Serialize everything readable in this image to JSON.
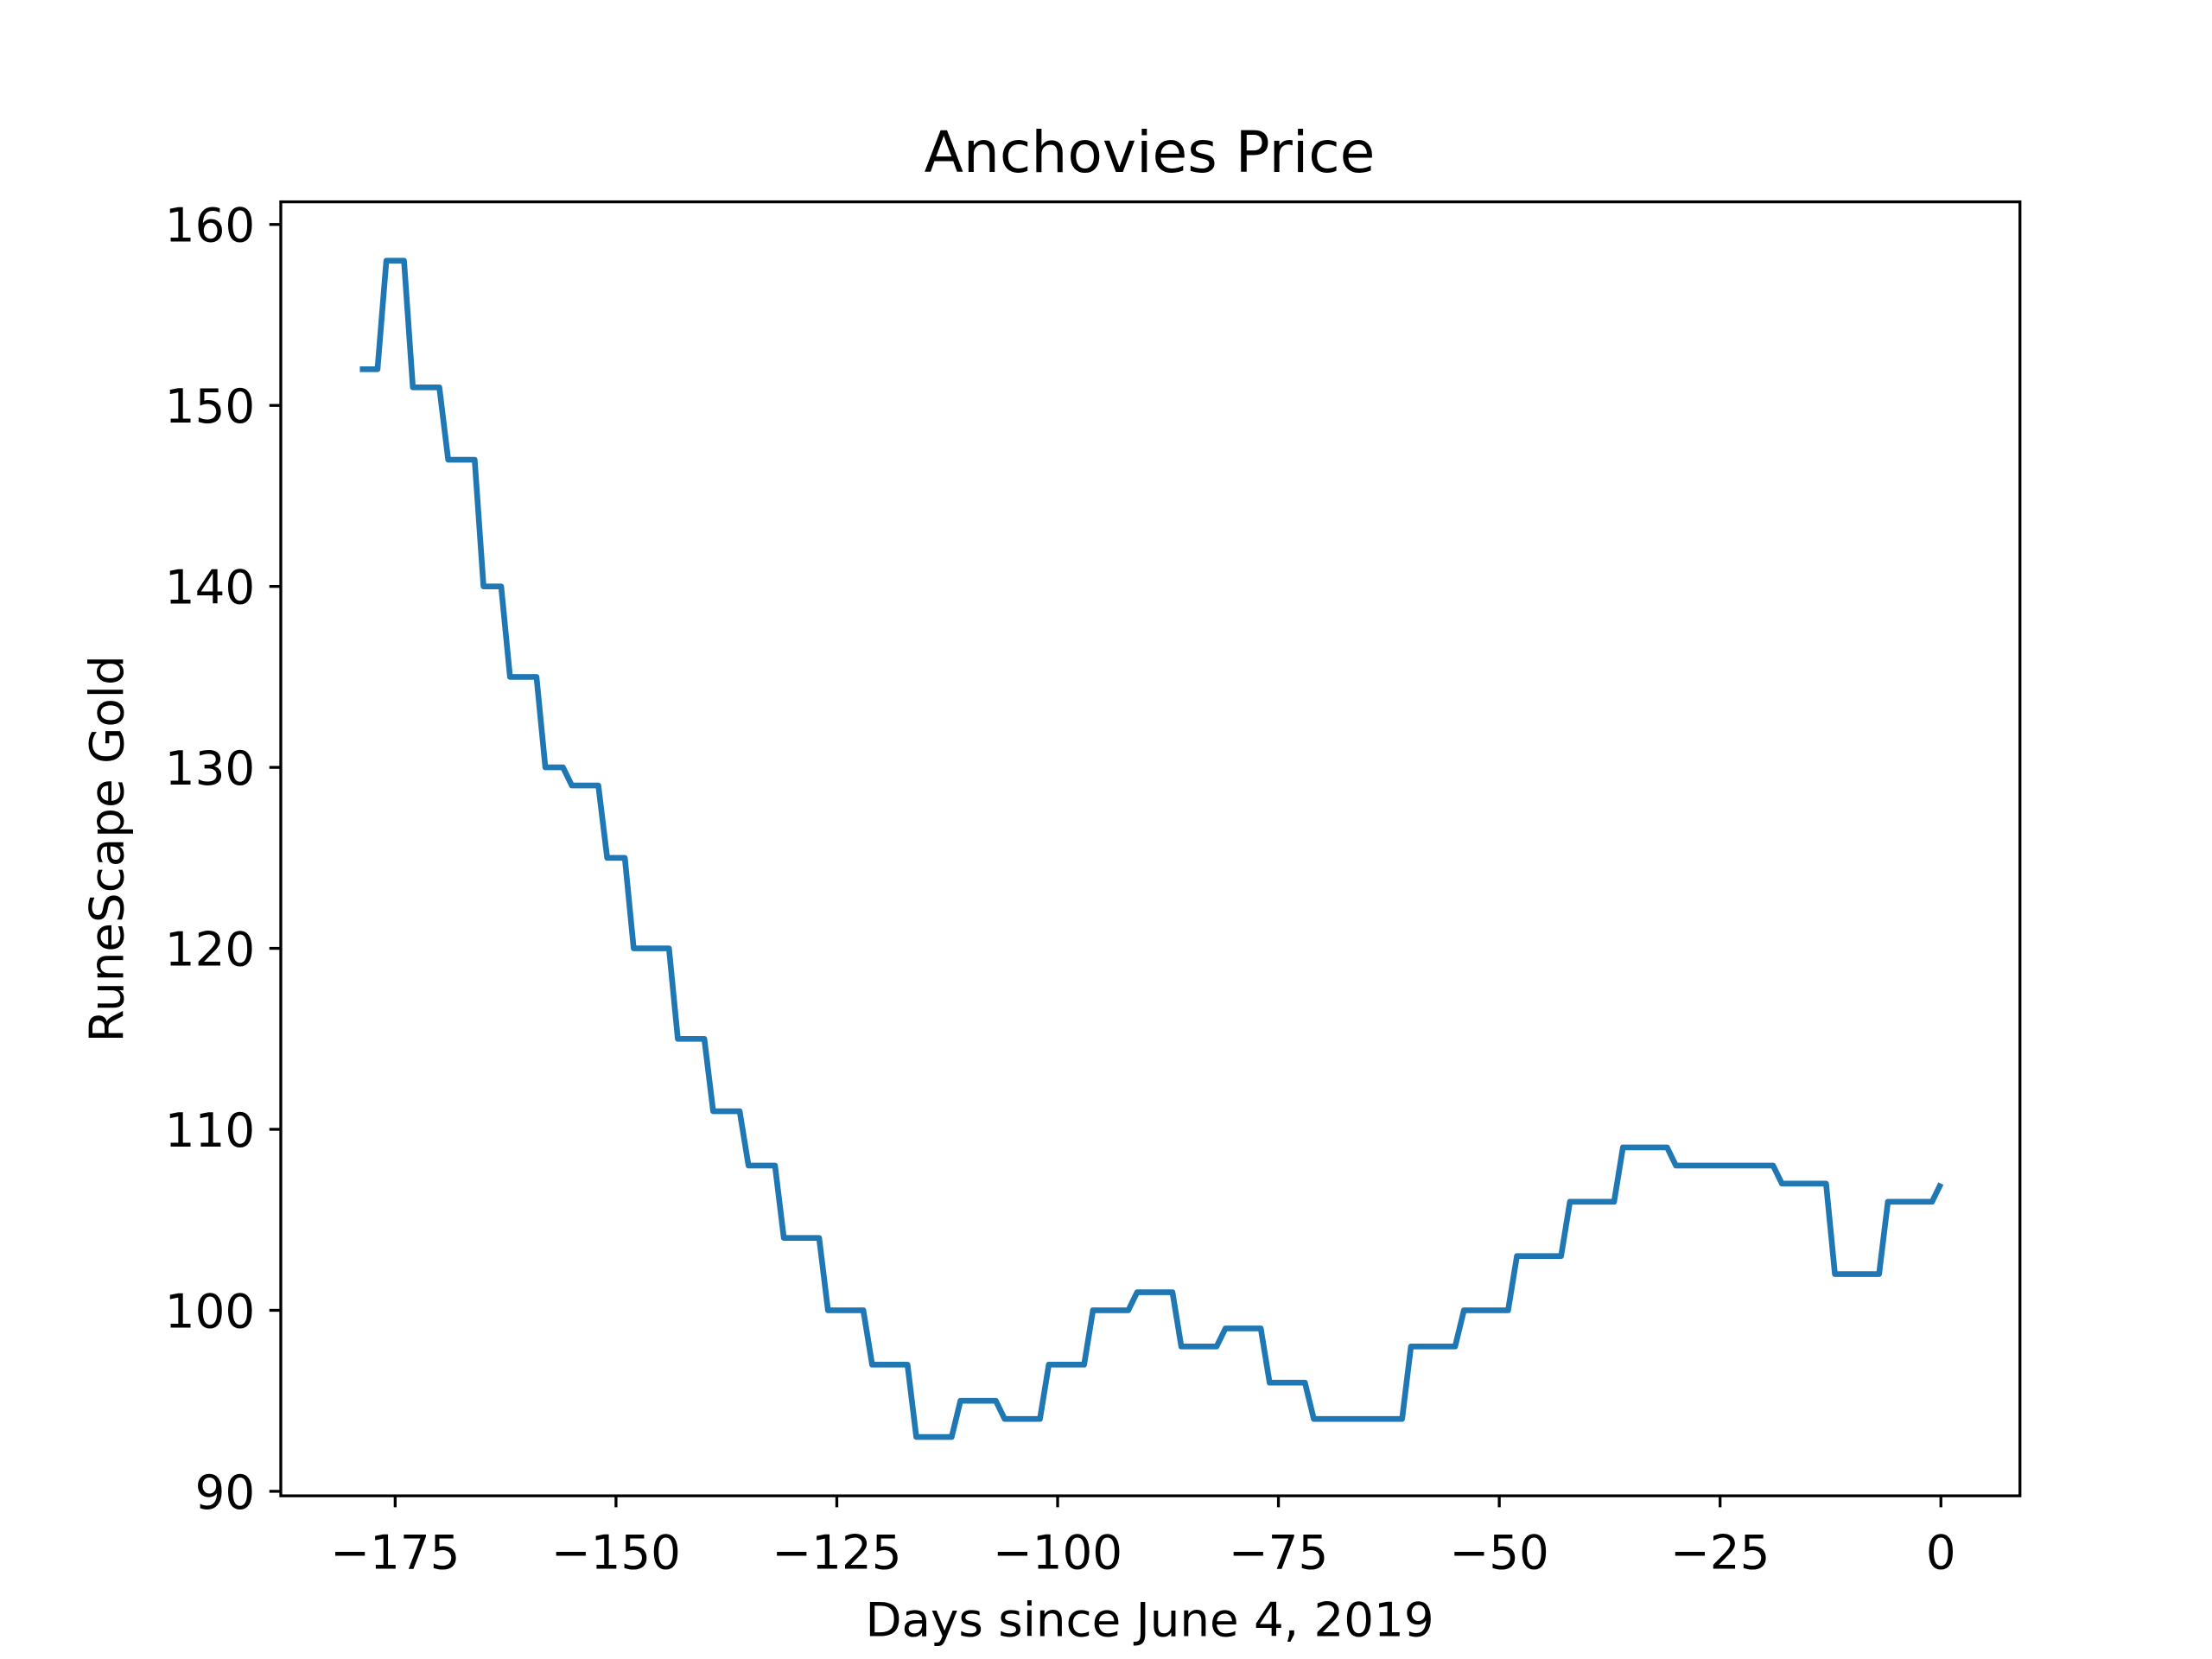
{
  "chart_data": {
    "type": "line",
    "title": "Anchovies Price",
    "xlabel": "Days since June 4, 2019",
    "ylabel": "RuneScape Gold",
    "x": [
      -179,
      -177,
      -176,
      -174,
      -173,
      -170,
      -169,
      -166,
      -165,
      -163,
      -162,
      -159,
      -158,
      -156,
      -155,
      -152,
      -151,
      -149,
      -148,
      -144,
      -143,
      -140,
      -139,
      -136,
      -135,
      -132,
      -131,
      -127,
      -126,
      -122,
      -121,
      -117,
      -116,
      -112,
      -111,
      -107,
      -106,
      -102,
      -101,
      -97,
      -96,
      -92,
      -91,
      -87,
      -86,
      -82,
      -81,
      -77,
      -76,
      -72,
      -71,
      -61,
      -60,
      -55,
      -54,
      -49,
      -48,
      -43,
      -42,
      -37,
      -36,
      -31,
      -30,
      -19,
      -18,
      -13,
      -12,
      -7,
      -6,
      -1,
      0
    ],
    "series": [
      {
        "name": "Anchovies",
        "color": "#1f77b4",
        "values": [
          152,
          152,
          158,
          158,
          151,
          151,
          147,
          147,
          140,
          140,
          135,
          135,
          130,
          130,
          129,
          129,
          125,
          125,
          120,
          120,
          115,
          115,
          111,
          111,
          108,
          108,
          104,
          104,
          100,
          100,
          97,
          97,
          93,
          93,
          95,
          95,
          94,
          94,
          97,
          97,
          100,
          100,
          101,
          101,
          98,
          98,
          99,
          99,
          96,
          96,
          94,
          94,
          98,
          98,
          100,
          100,
          103,
          103,
          106,
          106,
          109,
          109,
          108,
          108,
          107,
          107,
          102,
          102,
          106,
          106,
          107
        ]
      }
    ],
    "xlim": [
      -187.95,
      8.95
    ],
    "ylim": [
      89.75,
      161.25
    ],
    "xticks": [
      {
        "value": -175,
        "label": "−175"
      },
      {
        "value": -150,
        "label": "−150"
      },
      {
        "value": -125,
        "label": "−125"
      },
      {
        "value": -100,
        "label": "−100"
      },
      {
        "value": -75,
        "label": "−75"
      },
      {
        "value": -50,
        "label": "−50"
      },
      {
        "value": -25,
        "label": "−25"
      },
      0
    ],
    "yticks": [
      90,
      100,
      110,
      120,
      130,
      140,
      150,
      160
    ],
    "grid": false
  }
}
